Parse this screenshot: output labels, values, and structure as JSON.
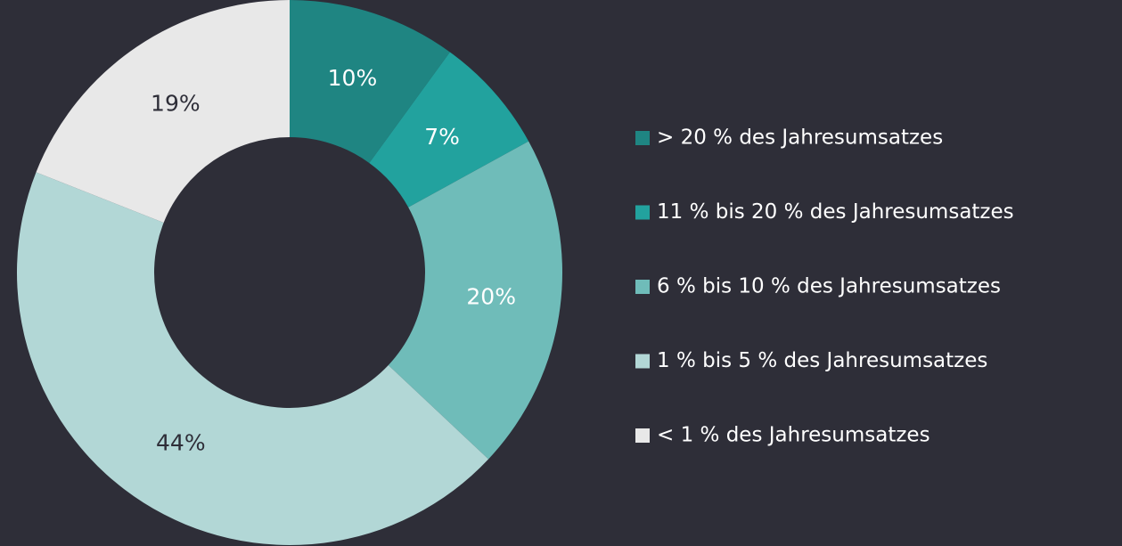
{
  "chart_data": {
    "type": "donut",
    "categories": [
      "> 20 % des Jahresumsatzes",
      "11 % bis 20 % des Jahresumsatzes",
      "6 % bis 10 % des Jahresumsatzes",
      "1 % bis 5 % des Jahresumsatzes",
      "< 1 % des Jahresumsatzes"
    ],
    "values": [
      10,
      7,
      20,
      44,
      19
    ],
    "value_labels": [
      "10%",
      "7%",
      "20%",
      "44%",
      "19%"
    ],
    "colors": [
      "#1f8582",
      "#22a29e",
      "#6fbcb9",
      "#b2d7d6",
      "#e8e8e8"
    ],
    "legend": "right"
  }
}
